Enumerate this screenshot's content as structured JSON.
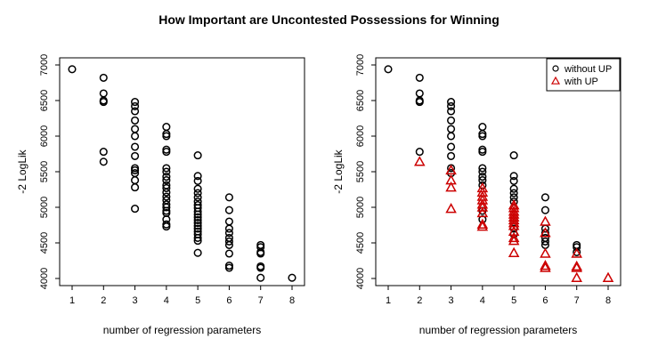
{
  "figure": {
    "title": "How Important are Uncontested Possessions for Winning"
  },
  "chart_data": [
    {
      "type": "scatter",
      "xlabel": "number of regression parameters",
      "ylabel": "-2 LogLik",
      "xlim": [
        1,
        8
      ],
      "ylim": [
        4000,
        7000
      ],
      "xticks": [
        1,
        2,
        3,
        4,
        5,
        6,
        7,
        8
      ],
      "yticks": [
        4000,
        4500,
        5000,
        5500,
        6000,
        6500,
        7000
      ],
      "grid": false,
      "legend": null,
      "series": [
        {
          "marker": "circle",
          "color": "#000000",
          "points": [
            [
              1,
              6940
            ],
            [
              2,
              6820
            ],
            [
              2,
              6600
            ],
            [
              2,
              6500
            ],
            [
              2,
              6480
            ],
            [
              2,
              5780
            ],
            [
              2,
              5640
            ],
            [
              3,
              6480
            ],
            [
              3,
              6420
            ],
            [
              3,
              6350
            ],
            [
              3,
              6220
            ],
            [
              3,
              6100
            ],
            [
              3,
              6000
            ],
            [
              3,
              5850
            ],
            [
              3,
              5720
            ],
            [
              3,
              5550
            ],
            [
              3,
              5520
            ],
            [
              3,
              5480
            ],
            [
              3,
              5380
            ],
            [
              3,
              5280
            ],
            [
              3,
              4980
            ],
            [
              4,
              6130
            ],
            [
              4,
              6030
            ],
            [
              4,
              6000
            ],
            [
              4,
              5810
            ],
            [
              4,
              5780
            ],
            [
              4,
              5550
            ],
            [
              4,
              5500
            ],
            [
              4,
              5430
            ],
            [
              4,
              5380
            ],
            [
              4,
              5310
            ],
            [
              4,
              5270
            ],
            [
              4,
              5210
            ],
            [
              4,
              5150
            ],
            [
              4,
              5100
            ],
            [
              4,
              5040
            ],
            [
              4,
              5000
            ],
            [
              4,
              4950
            ],
            [
              4,
              4920
            ],
            [
              4,
              4830
            ],
            [
              4,
              4760
            ],
            [
              4,
              4730
            ],
            [
              5,
              5730
            ],
            [
              5,
              5440
            ],
            [
              5,
              5370
            ],
            [
              5,
              5260
            ],
            [
              5,
              5200
            ],
            [
              5,
              5140
            ],
            [
              5,
              5080
            ],
            [
              5,
              5030
            ],
            [
              5,
              4990
            ],
            [
              5,
              4940
            ],
            [
              5,
              4900
            ],
            [
              5,
              4860
            ],
            [
              5,
              4820
            ],
            [
              5,
              4780
            ],
            [
              5,
              4740
            ],
            [
              5,
              4700
            ],
            [
              5,
              4660
            ],
            [
              5,
              4620
            ],
            [
              5,
              4570
            ],
            [
              5,
              4530
            ],
            [
              5,
              4360
            ],
            [
              6,
              5140
            ],
            [
              6,
              4960
            ],
            [
              6,
              4800
            ],
            [
              6,
              4700
            ],
            [
              6,
              4640
            ],
            [
              6,
              4570
            ],
            [
              6,
              4520
            ],
            [
              6,
              4470
            ],
            [
              6,
              4350
            ],
            [
              6,
              4180
            ],
            [
              6,
              4150
            ],
            [
              7,
              4470
            ],
            [
              7,
              4440
            ],
            [
              7,
              4370
            ],
            [
              7,
              4350
            ],
            [
              7,
              4170
            ],
            [
              7,
              4150
            ],
            [
              7,
              4010
            ],
            [
              8,
              4010
            ]
          ]
        }
      ]
    },
    {
      "type": "scatter",
      "xlabel": "number of regression parameters",
      "ylabel": "-2 LogLik",
      "xlim": [
        1,
        8
      ],
      "ylim": [
        4000,
        7000
      ],
      "xticks": [
        1,
        2,
        3,
        4,
        5,
        6,
        7,
        8
      ],
      "yticks": [
        4000,
        4500,
        5000,
        5500,
        6000,
        6500,
        7000
      ],
      "grid": false,
      "legend": "top-right",
      "series": [
        {
          "name": "without UP",
          "marker": "circle",
          "color": "#000000",
          "points": [
            [
              1,
              6940
            ],
            [
              2,
              6820
            ],
            [
              2,
              6600
            ],
            [
              2,
              6500
            ],
            [
              2,
              6480
            ],
            [
              2,
              5780
            ],
            [
              3,
              6480
            ],
            [
              3,
              6420
            ],
            [
              3,
              6350
            ],
            [
              3,
              6220
            ],
            [
              3,
              6100
            ],
            [
              3,
              6000
            ],
            [
              3,
              5850
            ],
            [
              3,
              5720
            ],
            [
              3,
              5550
            ],
            [
              3,
              5480
            ],
            [
              4,
              6130
            ],
            [
              4,
              6030
            ],
            [
              4,
              6000
            ],
            [
              4,
              5810
            ],
            [
              4,
              5780
            ],
            [
              4,
              5550
            ],
            [
              4,
              5500
            ],
            [
              4,
              5430
            ],
            [
              4,
              5380
            ],
            [
              4,
              5310
            ],
            [
              4,
              4950
            ],
            [
              4,
              4830
            ],
            [
              5,
              5730
            ],
            [
              5,
              5440
            ],
            [
              5,
              5370
            ],
            [
              5,
              5260
            ],
            [
              5,
              5200
            ],
            [
              5,
              5140
            ],
            [
              5,
              5080
            ],
            [
              5,
              4700
            ],
            [
              5,
              4620
            ],
            [
              6,
              5140
            ],
            [
              6,
              4960
            ],
            [
              6,
              4700
            ],
            [
              6,
              4640
            ],
            [
              6,
              4570
            ],
            [
              6,
              4520
            ],
            [
              6,
              4470
            ],
            [
              7,
              4470
            ],
            [
              7,
              4440
            ],
            [
              7,
              4370
            ]
          ]
        },
        {
          "name": "with UP",
          "marker": "triangle",
          "color": "#cc0000",
          "points": [
            [
              2,
              5640
            ],
            [
              3,
              5520
            ],
            [
              3,
              5380
            ],
            [
              3,
              5280
            ],
            [
              3,
              4980
            ],
            [
              4,
              5270
            ],
            [
              4,
              5210
            ],
            [
              4,
              5150
            ],
            [
              4,
              5100
            ],
            [
              4,
              5040
            ],
            [
              4,
              5000
            ],
            [
              4,
              4920
            ],
            [
              4,
              4760
            ],
            [
              4,
              4730
            ],
            [
              5,
              5030
            ],
            [
              5,
              4990
            ],
            [
              5,
              4940
            ],
            [
              5,
              4900
            ],
            [
              5,
              4860
            ],
            [
              5,
              4820
            ],
            [
              5,
              4780
            ],
            [
              5,
              4740
            ],
            [
              5,
              4660
            ],
            [
              5,
              4570
            ],
            [
              5,
              4530
            ],
            [
              5,
              4360
            ],
            [
              6,
              4800
            ],
            [
              6,
              4640
            ],
            [
              6,
              4350
            ],
            [
              6,
              4180
            ],
            [
              6,
              4150
            ],
            [
              7,
              4350
            ],
            [
              7,
              4170
            ],
            [
              7,
              4150
            ],
            [
              7,
              4010
            ],
            [
              8,
              4010
            ]
          ]
        }
      ]
    }
  ]
}
